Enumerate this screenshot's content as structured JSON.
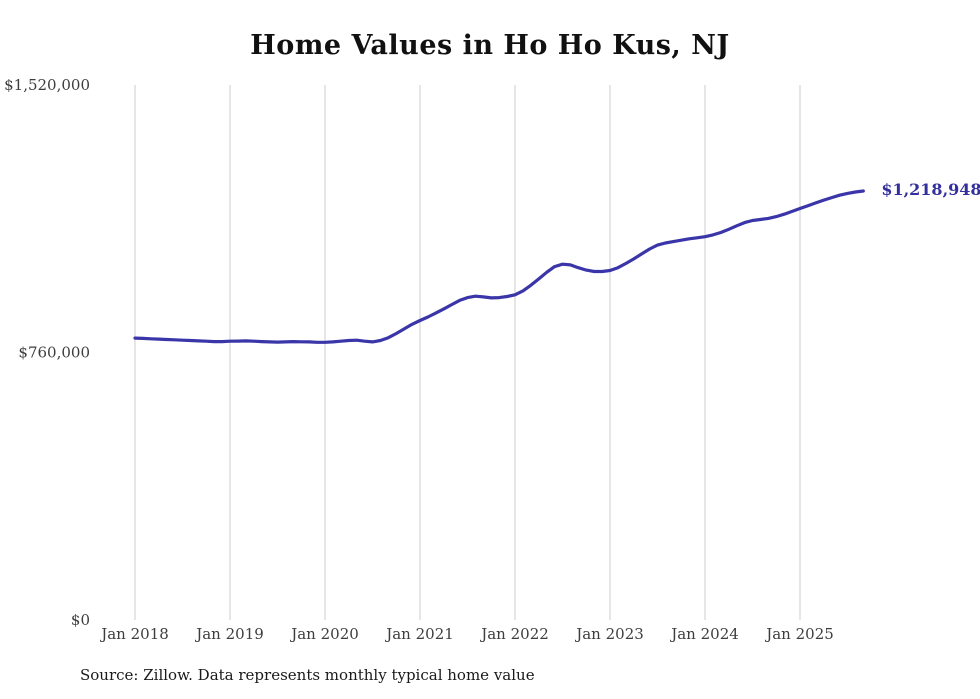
{
  "title": "Home Values in Ho Ho Kus, NJ",
  "source_note": "Source: Zillow. Data represents monthly typical home value",
  "chart_data": {
    "type": "line",
    "title": "Home Values in Ho Ho Kus, NJ",
    "xlabel": "",
    "ylabel": "",
    "ylim": [
      0,
      1520000
    ],
    "y_ticks": [
      0,
      760000,
      1520000
    ],
    "y_tick_labels": [
      "$0",
      "$760,000",
      "$1,520,000"
    ],
    "x_tick_labels": [
      "Jan 2018",
      "Jan 2019",
      "Jan 2020",
      "Jan 2021",
      "Jan 2022",
      "Jan 2023",
      "Jan 2024",
      "Jan 2025"
    ],
    "grid": "vertical-only",
    "grid_color": "#cccccc",
    "line_color": "#3a35a8",
    "end_label": "$1,218,948",
    "end_label_color": "#332f9e",
    "axis_label_color": "#3d3d3d",
    "series": [
      {
        "name": "Typical home value",
        "x_start": "2018-01",
        "x_interval": "month",
        "values": [
          801000,
          800000,
          799000,
          798000,
          797000,
          796000,
          795000,
          794000,
          793000,
          792000,
          791000,
          791000,
          792000,
          792500,
          793000,
          792000,
          791000,
          790000,
          789500,
          790000,
          791000,
          790500,
          790000,
          789000,
          789000,
          790000,
          792000,
          794000,
          795000,
          792000,
          790000,
          794000,
          802000,
          814000,
          827000,
          840000,
          851000,
          861000,
          872000,
          884000,
          896000,
          908000,
          916000,
          920000,
          918000,
          915000,
          916000,
          919000,
          924000,
          935000,
          951000,
          969000,
          988000,
          1004000,
          1011000,
          1009000,
          1001000,
          994000,
          990000,
          990000,
          993000,
          1001000,
          1013000,
          1026000,
          1040000,
          1054000,
          1065000,
          1071000,
          1075000,
          1079000,
          1083000,
          1086000,
          1089000,
          1094000,
          1101000,
          1110000,
          1120000,
          1129000,
          1135000,
          1138000,
          1141000,
          1146000,
          1153000,
          1161000,
          1169000,
          1177000,
          1185000,
          1193000,
          1200000,
          1207000,
          1212000,
          1216000,
          1218948
        ]
      }
    ],
    "last_value": 1218948
  }
}
